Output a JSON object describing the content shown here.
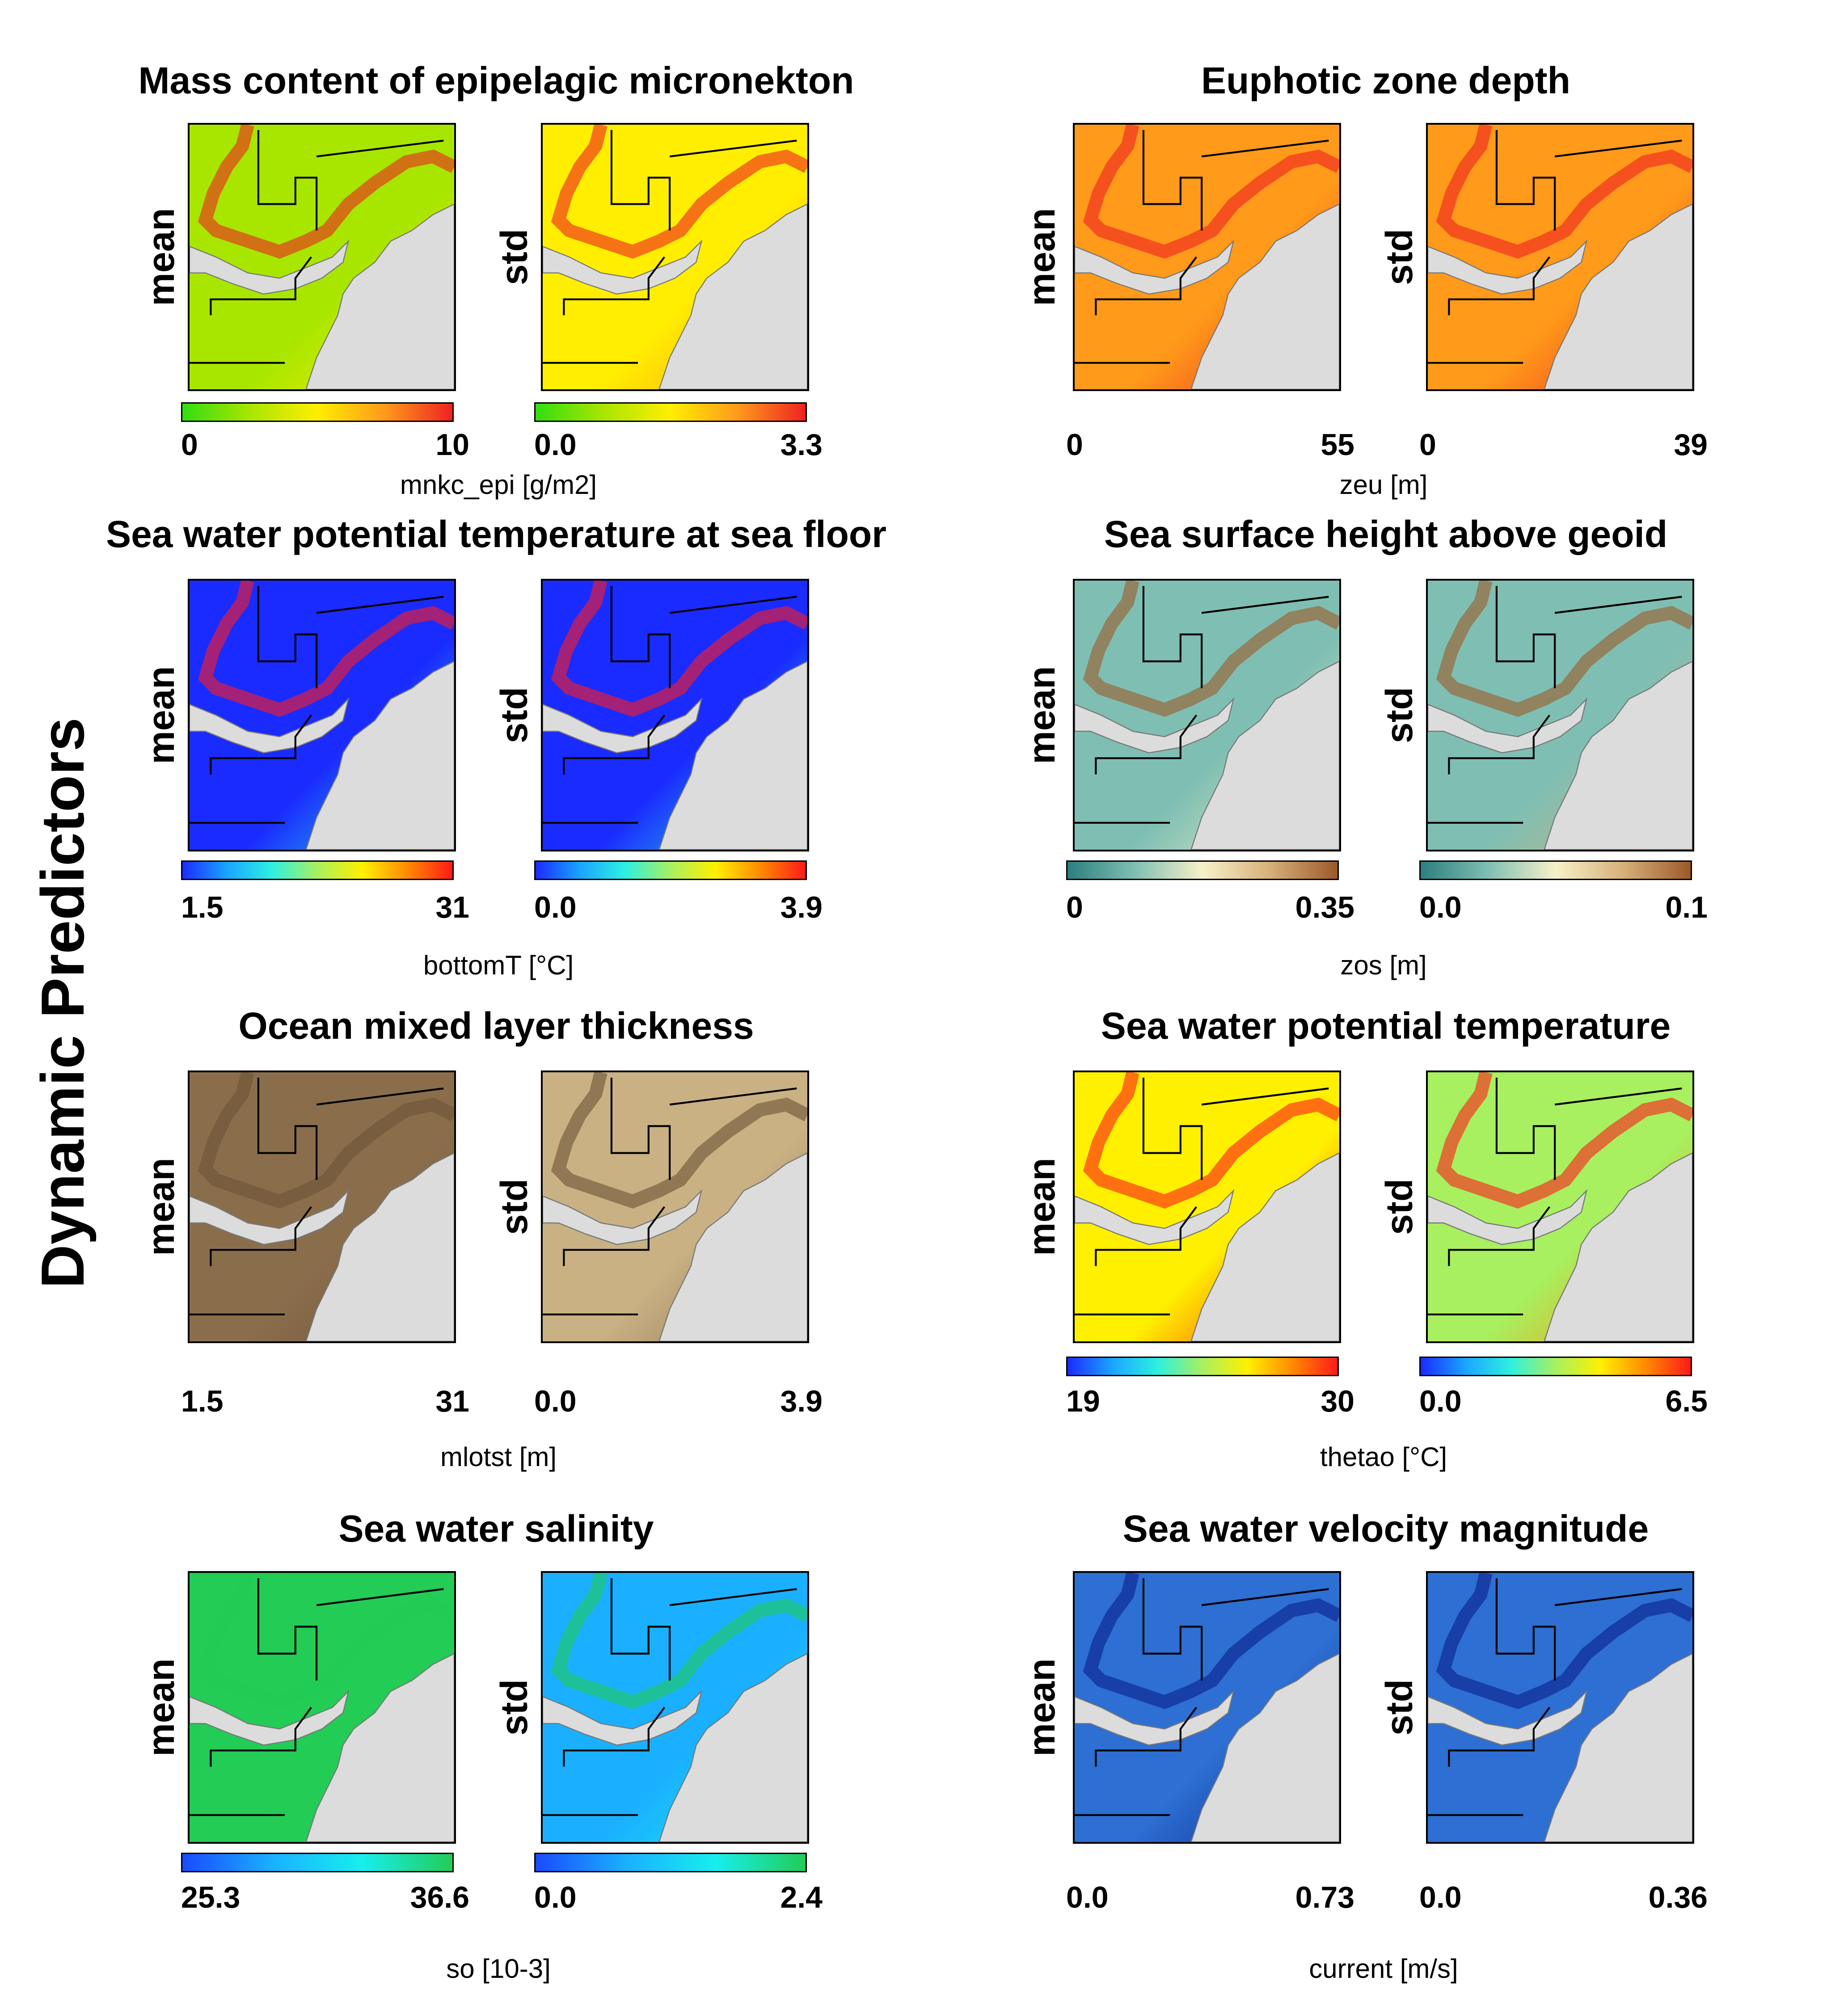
{
  "side_title": "Dynamic Predictors",
  "row_labels": {
    "mean": "mean",
    "std": "std"
  },
  "colormaps": {
    "greenred": [
      "#33dd11",
      "#a8e600",
      "#ffee00",
      "#ff9a1a",
      "#ee2222"
    ],
    "jet": [
      "#1a2bff",
      "#1aa6ff",
      "#2ef0e0",
      "#a8f060",
      "#fff000",
      "#ff8a00",
      "#ff1a1a"
    ],
    "brbg": [
      "#2b7f7f",
      "#7fbfb3",
      "#f7f1c8",
      "#d6b07a",
      "#9c5a28"
    ],
    "brown": [
      "#efe3b8",
      "#c9b184",
      "#8a6e4c",
      "#6d5236"
    ],
    "salinity": [
      "#1a4bff",
      "#1ab0ff",
      "#18eeee",
      "#22cc55"
    ],
    "blues": [
      "#dbeaff",
      "#6fa8ea",
      "#2d6fd2",
      "#0a1f8a"
    ],
    "land": "#dcdcdc"
  },
  "panels": [
    {
      "title": "Mass content of epipelagic micronekton",
      "unit": "mnkc_epi [g/m2]",
      "mean": {
        "min": "0",
        "max": "10"
      },
      "std": {
        "min": "0.0",
        "max": "3.3"
      },
      "colormap": "greenred",
      "show_colorbar": true,
      "mean_fill": 0.3,
      "std_fill": 0.4
    },
    {
      "title": "Euphotic zone depth",
      "unit": "zeu [m]",
      "mean": {
        "min": "0",
        "max": "55"
      },
      "std": {
        "min": "0",
        "max": "39"
      },
      "colormap": "greenred",
      "show_colorbar": false,
      "mean_fill": 0.75,
      "std_fill": 0.7
    },
    {
      "title": "Sea water potential temperature at sea floor",
      "unit": "bottomT [°C]",
      "mean": {
        "min": "1.5",
        "max": "31"
      },
      "std": {
        "min": "0.0",
        "max": "3.9"
      },
      "colormap": "jet",
      "show_colorbar": true,
      "mean_fill": 0.05,
      "std_fill": 0.05
    },
    {
      "title": "Sea surface height above geoid",
      "unit": "zos [m]",
      "mean": {
        "min": "0",
        "max": "0.35"
      },
      "std": {
        "min": "0.0",
        "max": "0.1"
      },
      "colormap": "brbg",
      "show_colorbar": true,
      "mean_fill": 0.25,
      "std_fill": 0.35
    },
    {
      "title": "Ocean mixed layer thickness",
      "unit": "mlotst [m]",
      "mean": {
        "min": "1.5",
        "max": "31"
      },
      "std": {
        "min": "0.0",
        "max": "3.9"
      },
      "colormap": "brown",
      "show_colorbar": false,
      "mean_fill": 0.75,
      "std_fill": 0.45
    },
    {
      "title": "Sea water potential temperature",
      "unit": "thetao [°C]",
      "mean": {
        "min": "19",
        "max": "30"
      },
      "std": {
        "min": "0.0",
        "max": "6.5"
      },
      "colormap": "jet",
      "show_colorbar": true,
      "mean_fill": 0.72,
      "std_fill": 0.55
    },
    {
      "title": "Sea water salinity",
      "unit": "so [10-3]",
      "mean": {
        "min": "25.3",
        "max": "36.6"
      },
      "std": {
        "min": "0.0",
        "max": "2.4"
      },
      "colormap": "salinity",
      "show_colorbar": true,
      "mean_fill": 0.95,
      "std_fill": 0.35
    },
    {
      "title": "Sea water velocity magnitude",
      "unit": "current [m/s]",
      "mean": {
        "min": "0.0",
        "max": "0.73"
      },
      "std": {
        "min": "0.0",
        "max": "0.36"
      },
      "colormap": "blues",
      "show_colorbar": false,
      "mean_fill": 0.55,
      "std_fill": 0.5
    }
  ]
}
